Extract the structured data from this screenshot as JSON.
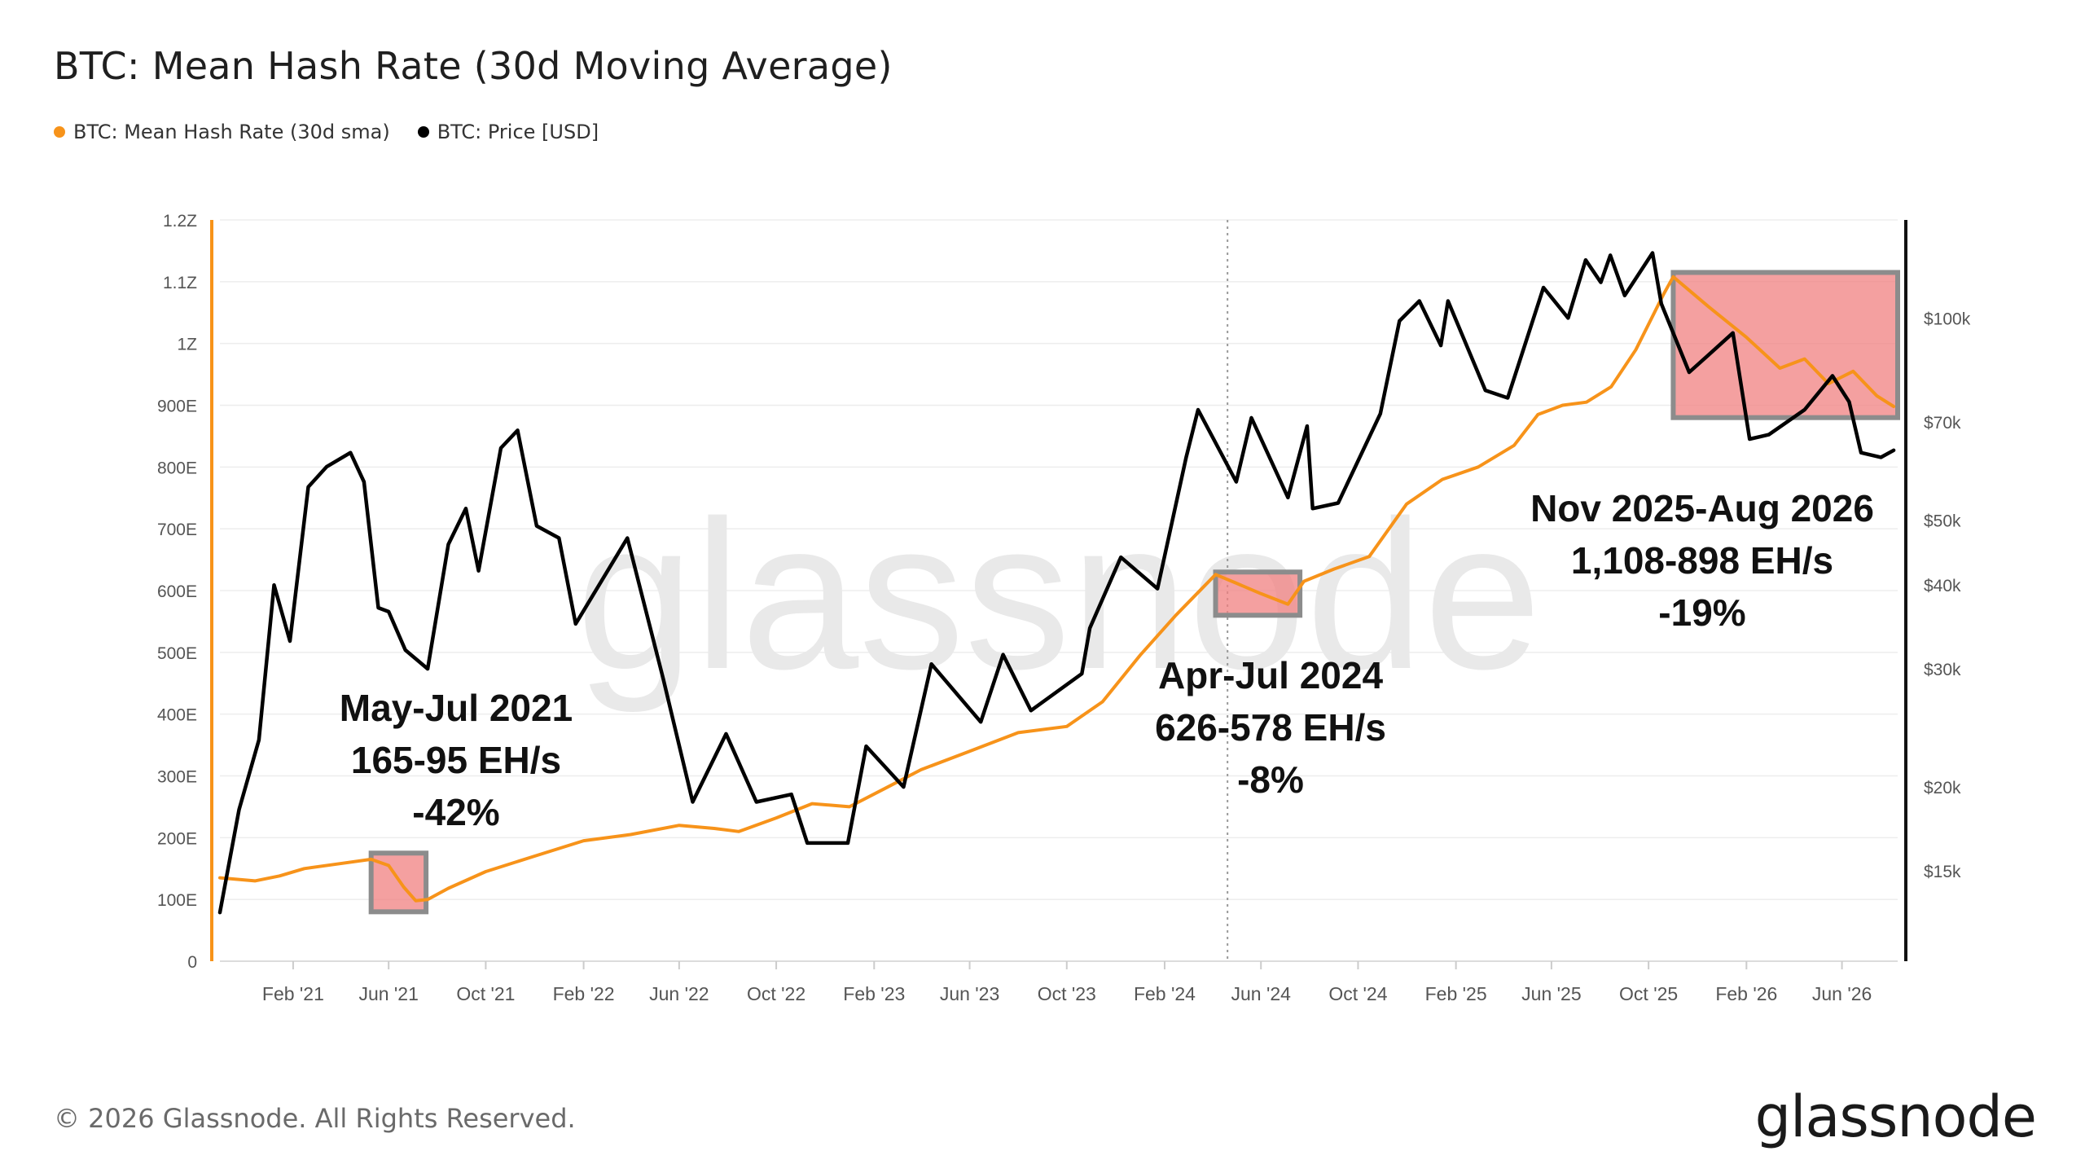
{
  "title": "BTC: Mean Hash Rate (30d Moving Average)",
  "legend": {
    "hashrate": "BTC: Mean Hash Rate (30d sma)",
    "price": "BTC: Price [USD]"
  },
  "watermark": "glassnode",
  "footer": "© 2026 Glassnode. All Rights Reserved.",
  "brand": "glassnode",
  "colors": {
    "hashrate": "#f7931a",
    "price": "#000000",
    "highlight_fill": "#f08080",
    "highlight_stroke": "#8c8c8c"
  },
  "chart_data": {
    "type": "line",
    "x_ticks": [
      "Feb '21",
      "Jun '21",
      "Oct '21",
      "Feb '22",
      "Jun '22",
      "Oct '22",
      "Feb '23",
      "Jun '23",
      "Oct '23",
      "Feb '24",
      "Jun '24",
      "Oct '24",
      "Feb '25",
      "Jun '25",
      "Oct '25",
      "Feb '26",
      "Jun '26"
    ],
    "x_range": [
      "2020-11-01",
      "2026-08-10"
    ],
    "left_axis": {
      "ticks": [
        "0",
        "100E",
        "200E",
        "300E",
        "400E",
        "500E",
        "600E",
        "700E",
        "800E",
        "900E",
        "1Z",
        "1.1Z",
        "1.2Z"
      ],
      "ylim": [
        0,
        1200
      ],
      "unit": "EH/s"
    },
    "right_axis": {
      "scale": "log",
      "ticks": [
        "$15k",
        "$20k",
        "$30k",
        "$40k",
        "$50k",
        "$70k",
        "$100k"
      ],
      "tick_values": [
        15000,
        20000,
        30000,
        40000,
        50000,
        70000,
        100000
      ],
      "ylim": [
        11000,
        140000
      ]
    },
    "series": [
      {
        "name": "BTC: Mean Hash Rate (30d sma)",
        "axis": "left",
        "points": [
          [
            "2020-11-01",
            135
          ],
          [
            "2020-12-15",
            130
          ],
          [
            "2021-01-15",
            138
          ],
          [
            "2021-02-15",
            150
          ],
          [
            "2021-04-01",
            158
          ],
          [
            "2021-05-10",
            165
          ],
          [
            "2021-06-01",
            155
          ],
          [
            "2021-06-20",
            120
          ],
          [
            "2021-07-05",
            98
          ],
          [
            "2021-07-20",
            100
          ],
          [
            "2021-08-15",
            118
          ],
          [
            "2021-10-01",
            145
          ],
          [
            "2021-12-01",
            170
          ],
          [
            "2022-02-01",
            195
          ],
          [
            "2022-04-01",
            205
          ],
          [
            "2022-06-01",
            220
          ],
          [
            "2022-07-15",
            215
          ],
          [
            "2022-08-15",
            210
          ],
          [
            "2022-10-01",
            232
          ],
          [
            "2022-11-15",
            255
          ],
          [
            "2023-01-01",
            250
          ],
          [
            "2023-02-15",
            280
          ],
          [
            "2023-04-01",
            310
          ],
          [
            "2023-06-01",
            340
          ],
          [
            "2023-08-01",
            370
          ],
          [
            "2023-10-01",
            380
          ],
          [
            "2023-11-15",
            420
          ],
          [
            "2024-01-01",
            495
          ],
          [
            "2024-02-15",
            560
          ],
          [
            "2024-04-05",
            626
          ],
          [
            "2024-05-01",
            612
          ],
          [
            "2024-06-01",
            595
          ],
          [
            "2024-07-05",
            578
          ],
          [
            "2024-07-25",
            615
          ],
          [
            "2024-09-01",
            635
          ],
          [
            "2024-10-15",
            655
          ],
          [
            "2024-12-01",
            740
          ],
          [
            "2025-01-15",
            780
          ],
          [
            "2025-03-01",
            800
          ],
          [
            "2025-04-15",
            835
          ],
          [
            "2025-05-15",
            885
          ],
          [
            "2025-06-15",
            900
          ],
          [
            "2025-07-15",
            905
          ],
          [
            "2025-08-15",
            930
          ],
          [
            "2025-09-15",
            990
          ],
          [
            "2025-10-20",
            1080
          ],
          [
            "2025-11-01",
            1108
          ],
          [
            "2025-12-15",
            1060
          ],
          [
            "2026-02-01",
            1010
          ],
          [
            "2026-03-15",
            960
          ],
          [
            "2026-04-15",
            975
          ],
          [
            "2026-05-15",
            935
          ],
          [
            "2026-06-15",
            955
          ],
          [
            "2026-07-15",
            915
          ],
          [
            "2026-08-05",
            898
          ]
        ]
      },
      {
        "name": "BTC: Price [USD]",
        "axis": "right",
        "points": [
          [
            "2020-11-01",
            13000
          ],
          [
            "2020-11-25",
            18500
          ],
          [
            "2020-12-20",
            23500
          ],
          [
            "2021-01-08",
            40000
          ],
          [
            "2021-01-28",
            33000
          ],
          [
            "2021-02-20",
            56000
          ],
          [
            "2021-03-15",
            60000
          ],
          [
            "2021-04-14",
            63000
          ],
          [
            "2021-05-01",
            57000
          ],
          [
            "2021-05-19",
            37000
          ],
          [
            "2021-06-01",
            36500
          ],
          [
            "2021-06-22",
            32000
          ],
          [
            "2021-07-20",
            30000
          ],
          [
            "2021-08-15",
            46000
          ],
          [
            "2021-09-06",
            52000
          ],
          [
            "2021-09-22",
            42000
          ],
          [
            "2021-10-20",
            64000
          ],
          [
            "2021-11-10",
            68000
          ],
          [
            "2021-12-04",
            49000
          ],
          [
            "2022-01-01",
            47000
          ],
          [
            "2022-01-22",
            35000
          ],
          [
            "2022-03-28",
            47000
          ],
          [
            "2022-05-12",
            29000
          ],
          [
            "2022-06-18",
            19000
          ],
          [
            "2022-07-30",
            24000
          ],
          [
            "2022-09-06",
            19000
          ],
          [
            "2022-10-20",
            19500
          ],
          [
            "2022-11-09",
            16500
          ],
          [
            "2022-12-30",
            16500
          ],
          [
            "2023-01-22",
            23000
          ],
          [
            "2023-03-10",
            20000
          ],
          [
            "2023-04-14",
            30500
          ],
          [
            "2023-06-15",
            25000
          ],
          [
            "2023-07-13",
            31500
          ],
          [
            "2023-08-17",
            26000
          ],
          [
            "2023-10-20",
            29500
          ],
          [
            "2023-10-30",
            34500
          ],
          [
            "2023-12-08",
            44000
          ],
          [
            "2024-01-23",
            39500
          ],
          [
            "2024-02-28",
            62000
          ],
          [
            "2024-03-14",
            73000
          ],
          [
            "2024-05-01",
            57000
          ],
          [
            "2024-05-20",
            71000
          ],
          [
            "2024-07-05",
            54000
          ],
          [
            "2024-07-29",
            69000
          ],
          [
            "2024-08-05",
            52000
          ],
          [
            "2024-09-06",
            53000
          ],
          [
            "2024-10-29",
            72000
          ],
          [
            "2024-11-22",
            99000
          ],
          [
            "2024-12-17",
            106000
          ],
          [
            "2025-01-13",
            91000
          ],
          [
            "2025-01-22",
            106000
          ],
          [
            "2025-03-10",
            78000
          ],
          [
            "2025-04-07",
            76000
          ],
          [
            "2025-05-22",
            111000
          ],
          [
            "2025-06-22",
            100000
          ],
          [
            "2025-07-14",
            122000
          ],
          [
            "2025-08-02",
            113000
          ],
          [
            "2025-08-14",
            124000
          ],
          [
            "2025-09-01",
            108000
          ],
          [
            "2025-10-06",
            125000
          ],
          [
            "2025-10-17",
            105000
          ],
          [
            "2025-11-21",
            83000
          ],
          [
            "2025-12-15",
            88000
          ],
          [
            "2026-01-15",
            95000
          ],
          [
            "2026-02-05",
            66000
          ],
          [
            "2026-03-01",
            67000
          ],
          [
            "2026-04-15",
            73000
          ],
          [
            "2026-05-20",
            82000
          ],
          [
            "2026-06-10",
            75000
          ],
          [
            "2026-06-25",
            63000
          ],
          [
            "2026-07-20",
            62000
          ],
          [
            "2026-08-05",
            63500
          ]
        ]
      }
    ],
    "vertical_marker": "2024-04-20",
    "annotations": [
      {
        "lines": [
          "May-Jul 2021",
          "165-95 EH/s",
          "-42%"
        ],
        "box": {
          "x0": "2021-05-10",
          "x1": "2021-07-18",
          "y0": 80,
          "y1": 175
        }
      },
      {
        "lines": [
          "Apr-Jul 2024",
          "626-578 EH/s",
          "-8%"
        ],
        "box": {
          "x0": "2024-04-05",
          "x1": "2024-07-20",
          "y0": 560,
          "y1": 630
        }
      },
      {
        "lines": [
          "Nov 2025-Aug 2026",
          "1,108-898 EH/s",
          "-19%"
        ],
        "box": {
          "x0": "2025-11-01",
          "x1": "2026-08-10",
          "y0": 880,
          "y1": 1115
        }
      }
    ]
  }
}
